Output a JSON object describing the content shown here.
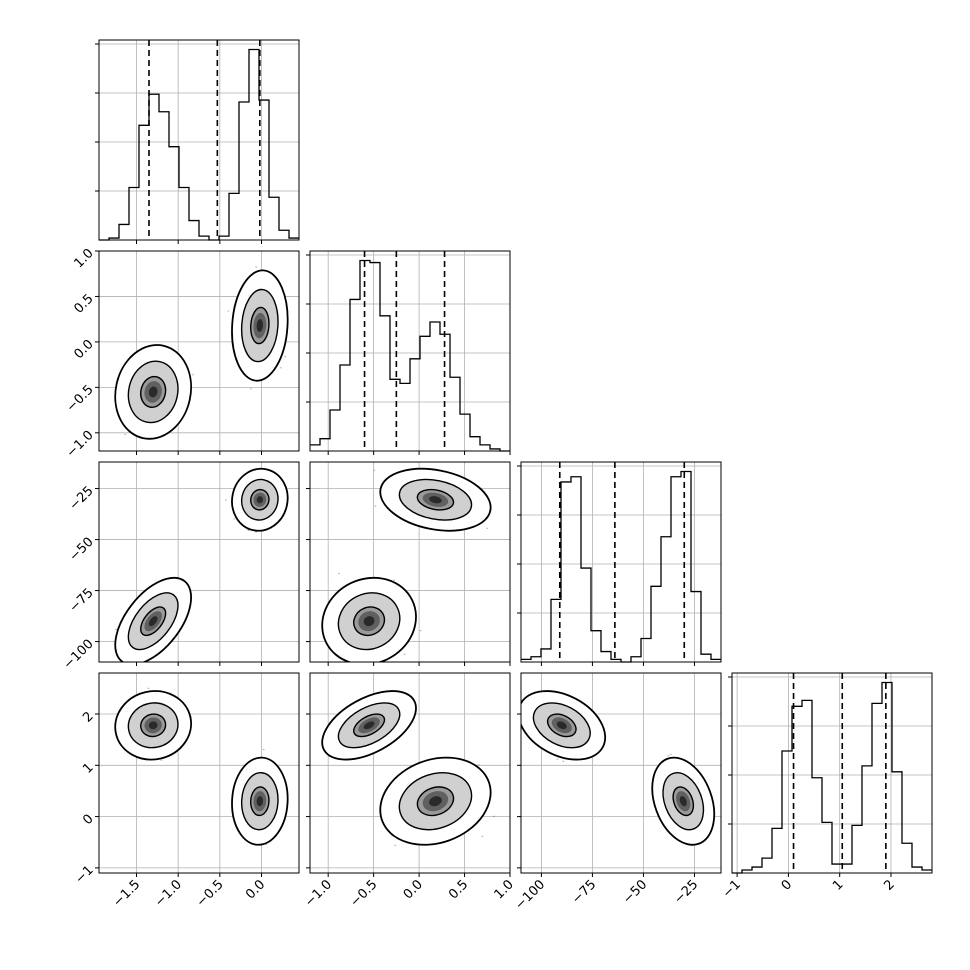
{
  "chart_data": {
    "type": "corner",
    "grid": true,
    "parameters": [
      {
        "range": [
          -1.95,
          0.45
        ],
        "ticks": [
          -1.5,
          -1.0,
          -0.5,
          0.0
        ],
        "tick_labels": [
          "−1.5",
          "−1.0",
          "−0.5",
          "0.0"
        ],
        "quantiles": [
          -1.35,
          -0.53,
          -0.02
        ]
      },
      {
        "range": [
          -1.2,
          1.0
        ],
        "ticks": [
          -1.0,
          -0.5,
          0.0,
          0.5,
          1.0
        ],
        "tick_labels": [
          "−1.0",
          "−0.5",
          "0.0",
          "0.5",
          "1.0"
        ],
        "quantiles": [
          -0.6,
          -0.25,
          0.28
        ]
      },
      {
        "range": [
          -110,
          -12
        ],
        "ticks": [
          -100,
          -75,
          -50,
          -25
        ],
        "tick_labels": [
          "−100",
          "−75",
          "−50",
          "−25"
        ],
        "quantiles": [
          -91,
          -64,
          -30
        ]
      },
      {
        "range": [
          -1.1,
          2.8
        ],
        "ticks": [
          -1,
          0,
          1,
          2
        ],
        "tick_labels": [
          "−1",
          "0",
          "1",
          "2"
        ],
        "quantiles": [
          0.1,
          1.05,
          1.9
        ]
      }
    ],
    "histograms": [
      {
        "edges": [
          -1.95,
          -1.83,
          -1.71,
          -1.59,
          -1.47,
          -1.35,
          -1.23,
          -1.11,
          -0.99,
          -0.87,
          -0.75,
          -0.63,
          -0.51,
          -0.39,
          -0.27,
          -0.15,
          -0.03,
          0.09,
          0.21,
          0.33,
          0.45
        ],
        "counts": [
          0,
          1,
          8,
          27,
          59,
          75,
          66,
          48,
          27,
          10,
          2,
          0,
          2,
          24,
          71,
          98,
          72,
          22,
          5,
          1
        ]
      },
      {
        "edges": [
          -1.2,
          -1.09,
          -0.98,
          -0.87,
          -0.76,
          -0.65,
          -0.54,
          -0.43,
          -0.32,
          -0.21,
          -0.1,
          0.01,
          0.12,
          0.23,
          0.34,
          0.45,
          0.56,
          0.67,
          0.78,
          0.89,
          1.0
        ],
        "counts": [
          3,
          6,
          20,
          42,
          74,
          93,
          92,
          66,
          35,
          33,
          45,
          56,
          63,
          57,
          36,
          18,
          7,
          3,
          1,
          0
        ]
      },
      {
        "edges": [
          -110,
          -105.1,
          -100.2,
          -95.3,
          -90.4,
          -85.5,
          -80.6,
          -75.7,
          -70.8,
          -65.9,
          -61,
          -56.1,
          -51.2,
          -46.3,
          -41.4,
          -36.5,
          -31.6,
          -26.7,
          -21.8,
          -16.9,
          -12
        ],
        "counts": [
          1,
          2,
          5,
          24,
          69,
          71,
          36,
          12,
          4,
          1,
          0,
          2,
          9,
          29,
          48,
          71,
          73,
          27,
          3,
          1
        ]
      },
      {
        "edges": [
          -1.1,
          -0.905,
          -0.71,
          -0.515,
          -0.32,
          -0.125,
          0.07,
          0.265,
          0.46,
          0.655,
          0.85,
          1.045,
          1.24,
          1.435,
          1.63,
          1.825,
          2.02,
          2.215,
          2.41,
          2.605,
          2.8
        ],
        "counts": [
          0,
          1,
          2,
          5,
          15,
          41,
          56,
          58,
          32,
          17,
          3,
          3,
          16,
          36,
          57,
          64,
          34,
          10,
          2,
          1
        ]
      }
    ],
    "clusters": [
      {
        "mean": [
          -0.02,
          0.18,
          -30.5,
          0.3
        ],
        "sd": [
          0.11,
          0.2,
          5,
          0.28
        ],
        "rho": {
          "0-1": 0.1,
          "0-2": 0.05,
          "0-3": 0.05,
          "1-2": -0.25,
          "1-3": 0.2,
          "2-3": -0.3
        }
      },
      {
        "mean": [
          -1.3,
          -0.55,
          -90,
          1.78
        ],
        "sd": [
          0.15,
          0.17,
          7,
          0.22
        ],
        "rho": {
          "0-1": 0.1,
          "0-2": 0.55,
          "0-3": 0.05,
          "1-2": 0.1,
          "1-3": 0.5,
          "2-3": -0.35
        }
      }
    ]
  }
}
